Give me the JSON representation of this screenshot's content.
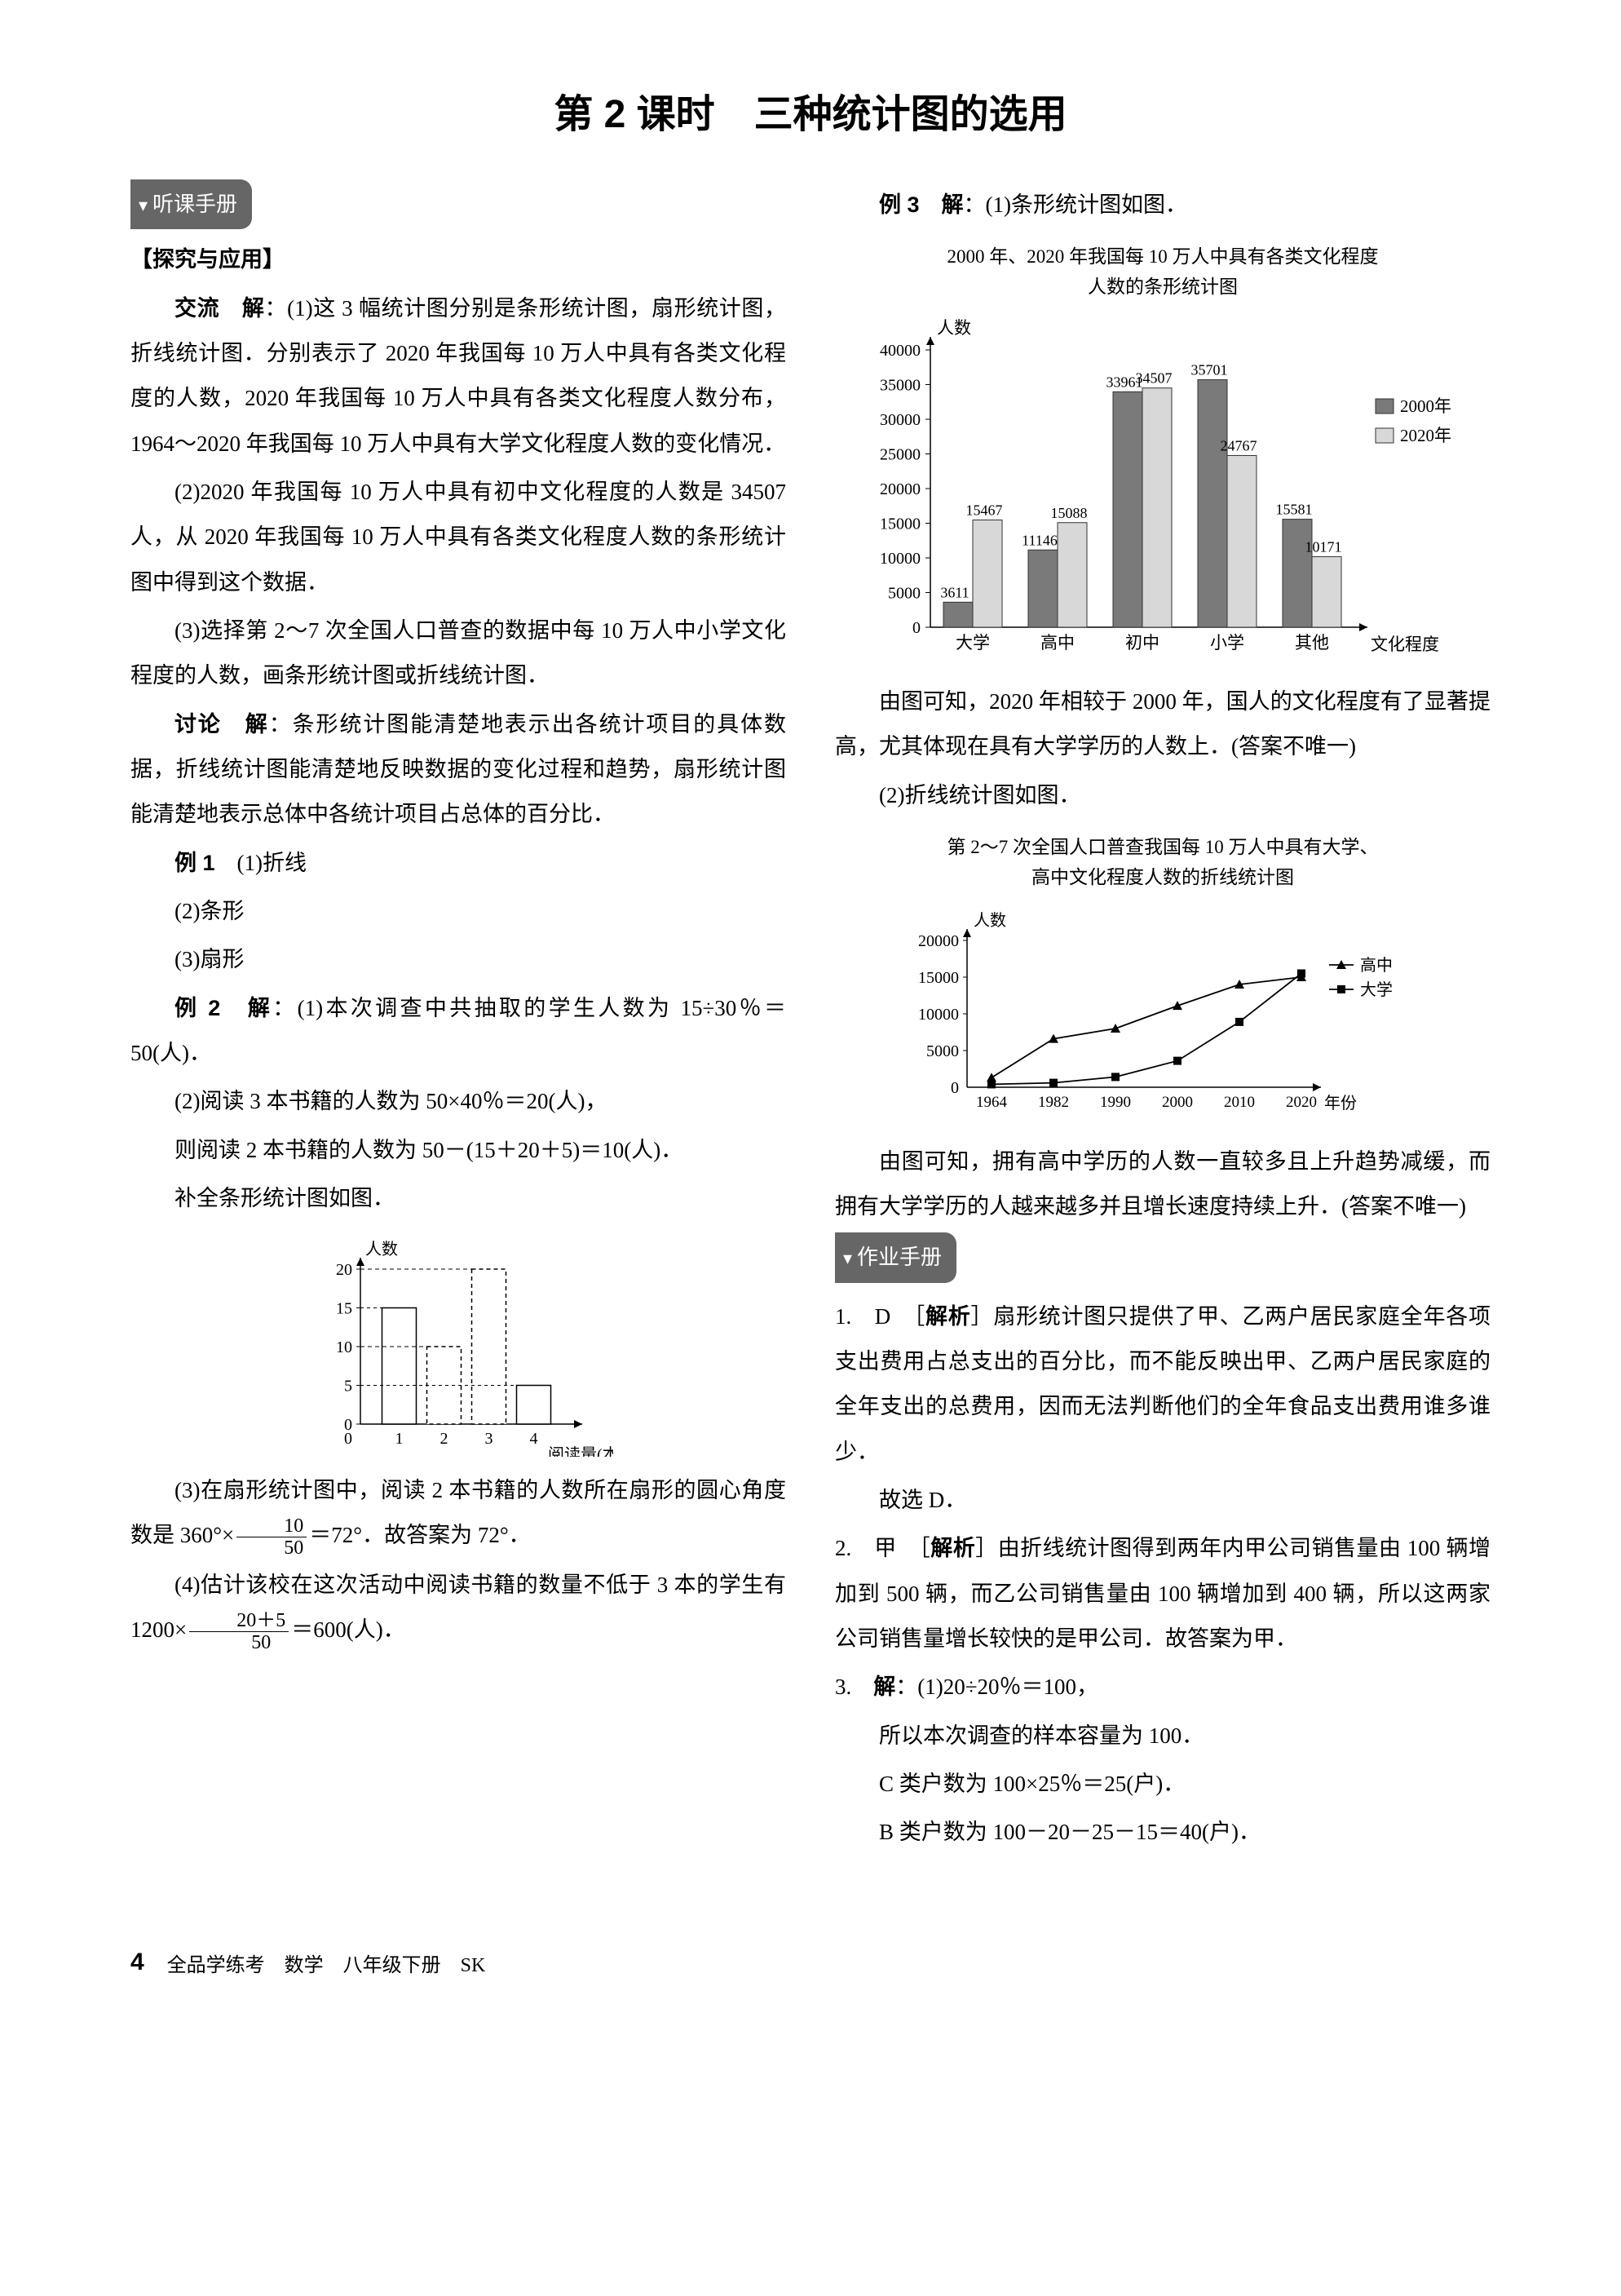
{
  "title": "第 2 课时　三种统计图的选用",
  "left": {
    "tag": "听课手册",
    "subhead": "【探究与应用】",
    "jiao_label": "交流",
    "jiao_jie": "解",
    "jiao1": "：(1)这 3 幅统计图分别是条形统计图，扇形统计图，折线统计图．分别表示了 2020 年我国每 10 万人中具有各类文化程度的人数，2020 年我国每 10 万人中具有各类文化程度人数分布，1964～2020 年我国每 10 万人中具有大学文化程度人数的变化情况．",
    "jiao2": "(2)2020 年我国每 10 万人中具有初中文化程度的人数是 34507 人，从 2020 年我国每 10 万人中具有各类文化程度人数的条形统计图中得到这个数据．",
    "jiao3": "(3)选择第 2～7 次全国人口普查的数据中每 10 万人中小学文化程度的人数，画条形统计图或折线统计图．",
    "taolun_label": "讨论",
    "taolun_jie": "解",
    "taolun": "：条形统计图能清楚地表示出各统计项目的具体数据，折线统计图能清楚地反映数据的变化过程和趋势，扇形统计图能清楚地表示总体中各统计项目占总体的百分比．",
    "ex1_label": "例 1",
    "ex1_1": "(1)折线",
    "ex1_2": "(2)条形",
    "ex1_3": "(3)扇形",
    "ex2_label": "例 2",
    "ex2_jie": "解",
    "ex2_1": "：(1)本次调查中共抽取的学生人数为 15÷30％＝50(人)．",
    "ex2_2": "(2)阅读 3 本书籍的人数为 50×40％＝20(人)，",
    "ex2_3": "则阅读 2 本书籍的人数为 50－(15＋20＋5)＝10(人)．",
    "ex2_4": "补全条形统计图如图．",
    "ex2_5a": "(3)在扇形统计图中，阅读 2 本书籍的人数所在扇形的圆心角度数是 360°×",
    "ex2_5b": "＝72°．故答案为 72°．",
    "frac1_num": "10",
    "frac1_den": "50",
    "ex2_6a": "(4)估计该校在这次活动中阅读书籍的数量不低于 3 本的学生有 1200×",
    "ex2_6b": "＝600(人)．",
    "frac2_num": "20＋5",
    "frac2_den": "50",
    "reading_chart": {
      "ylabel": "人数",
      "xlabel": "阅读量(本)",
      "ytick_max": 20,
      "ytick_step": 5,
      "categories": [
        "1",
        "2",
        "3",
        "4"
      ],
      "values": [
        15,
        10,
        20,
        5
      ],
      "dashed": [
        false,
        true,
        true,
        false
      ],
      "bar_fill": "#ffffff",
      "bar_stroke": "#000000"
    }
  },
  "right": {
    "ex3_label": "例 3",
    "ex3_jie": "解",
    "ex3_1": "：(1)条形统计图如图．",
    "bar_chart": {
      "title1": "2000 年、2020 年我国每 10 万人中具有各类文化程度",
      "title2": "人数的条形统计图",
      "ylabel": "人数",
      "xlabel": "文化程度",
      "categories": [
        "大学",
        "高中",
        "初中",
        "小学",
        "其他"
      ],
      "series": [
        {
          "name": "2000年",
          "color": "#7a7a7a",
          "values": [
            3611,
            11146,
            33961,
            35701,
            15581
          ]
        },
        {
          "name": "2020年",
          "color": "#d8d8d8",
          "values": [
            15467,
            15088,
            34507,
            24767,
            10171
          ]
        }
      ],
      "labels_2000": [
        "3611",
        "11146",
        "33961",
        "35701",
        "15581"
      ],
      "labels_2020": [
        "15467",
        "15088",
        "34507",
        "24767",
        "10171"
      ],
      "ylim": [
        0,
        40000
      ],
      "ytick_step": 5000,
      "bg": "#ffffff"
    },
    "ex3_2": "由图可知，2020 年相较于 2000 年，国人的文化程度有了显著提高，尤其体现在具有大学学历的人数上．(答案不唯一)",
    "ex3_3": "(2)折线统计图如图．",
    "line_chart": {
      "title1": "第 2～7 次全国人口普查我国每 10 万人中具有大学、",
      "title2": "高中文化程度人数的折线统计图",
      "ylabel": "人数",
      "xlabel": "年份",
      "categories": [
        "1964",
        "1982",
        "1990",
        "2000",
        "2010",
        "2020"
      ],
      "series": [
        {
          "name": "高中",
          "marker": "triangle",
          "values": [
            1300,
            6600,
            8000,
            11100,
            14000,
            15000
          ]
        },
        {
          "name": "大学",
          "marker": "square",
          "values": [
            400,
            600,
            1400,
            3600,
            8900,
            15500
          ]
        }
      ],
      "ylim": [
        0,
        20000
      ],
      "ytick_step": 5000
    },
    "ex3_4": "由图可知，拥有高中学历的人数一直较多且上升趋势减缓，而拥有大学学历的人越来越多并且增长速度持续上升．(答案不唯一)",
    "tag2": "作业手册",
    "q1_pre": "1.　D　［",
    "jiexi": "解析",
    "q1_body": "］扇形统计图只提供了甲、乙两户居民家庭全年各项支出费用占总支出的百分比，而不能反映出甲、乙两户居民家庭的全年支出的总费用，因而无法判断他们的全年食品支出费用谁多谁少．",
    "q1_end": "故选 D．",
    "q2_pre": "2.　甲　［",
    "q2_body": "］由折线统计图得到两年内甲公司销售量由 100 辆增加到 500 辆，而乙公司销售量由 100 辆增加到 400 辆，所以这两家公司销售量增长较快的是甲公司．故答案为甲．",
    "q3_pre": "3.　",
    "q3_jie": "解",
    "q3_1": "：(1)20÷20％＝100，",
    "q3_2": "所以本次调查的样本容量为 100．",
    "q3_3": "C 类户数为 100×25％＝25(户)．",
    "q3_4": "B 类户数为 100－20－25－15＝40(户)．"
  },
  "footer": {
    "page": "4",
    "book": "全品学练考　数学　八年级下册　SK"
  }
}
